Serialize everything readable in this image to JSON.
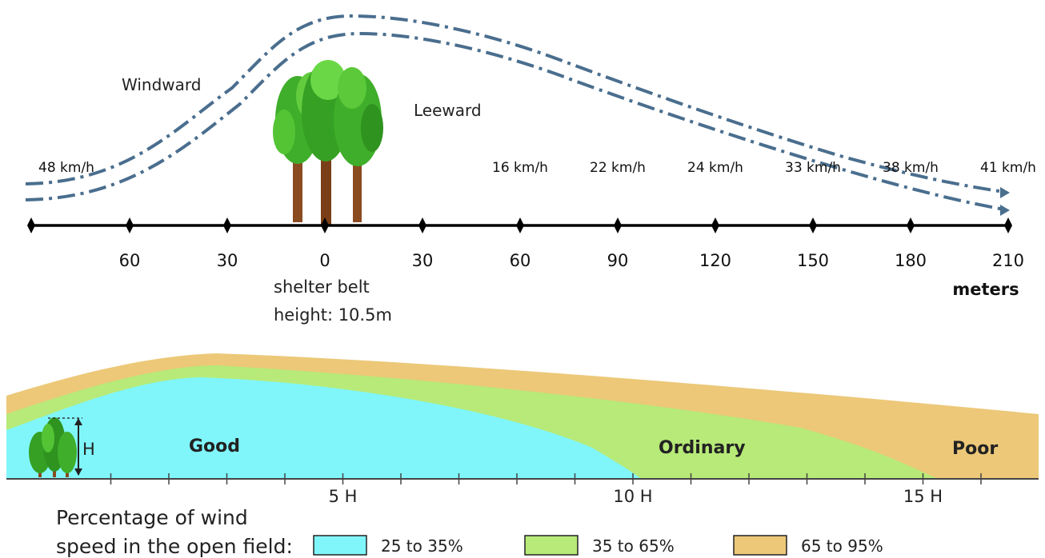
{
  "top": {
    "windward_label": "Windward",
    "leeward_label": "Leeward",
    "open_speed": "48 km/h",
    "speeds": [
      {
        "value": 60,
        "text": "16 km/h"
      },
      {
        "value": 90,
        "text": "22 km/h"
      },
      {
        "value": 120,
        "text": "24 km/h"
      },
      {
        "value": 150,
        "text": "33 km/h"
      },
      {
        "value": 180,
        "text": "38 km/h"
      },
      {
        "value": 210,
        "text": "41 km/h"
      }
    ],
    "ticks": [
      {
        "value": -60,
        "text": "60"
      },
      {
        "value": -30,
        "text": "30"
      },
      {
        "value": 0,
        "text": "0"
      },
      {
        "value": 30,
        "text": "30"
      },
      {
        "value": 60,
        "text": "60"
      },
      {
        "value": 90,
        "text": "90"
      },
      {
        "value": 120,
        "text": "120"
      },
      {
        "value": 150,
        "text": "150"
      },
      {
        "value": 180,
        "text": "180"
      },
      {
        "value": 210,
        "text": "210"
      }
    ],
    "unit": "meters",
    "belt_line1": "shelter belt",
    "belt_line2": "height: 10.5m"
  },
  "bottom": {
    "h_label": "H",
    "zones": {
      "good": "Good",
      "ordinary": "Ordinary",
      "poor": "Poor"
    },
    "axis_labels": [
      {
        "value": 5,
        "text": "5 H"
      },
      {
        "value": 10,
        "text": "10 H"
      },
      {
        "value": 15,
        "text": "15 H"
      }
    ]
  },
  "legend": {
    "title_line1": "Percentage of wind",
    "title_line2": "speed in the open field:",
    "items": [
      {
        "label": "25 to 35%",
        "color": "#80f6fb"
      },
      {
        "label": "35 to 65%",
        "color": "#b7ea78"
      },
      {
        "label": "65 to 95%",
        "color": "#ecc878"
      }
    ]
  },
  "colors": {
    "wind_line": "#4a6e8e",
    "trunk": "#8a4b20",
    "foliage": "#3fae2a"
  }
}
